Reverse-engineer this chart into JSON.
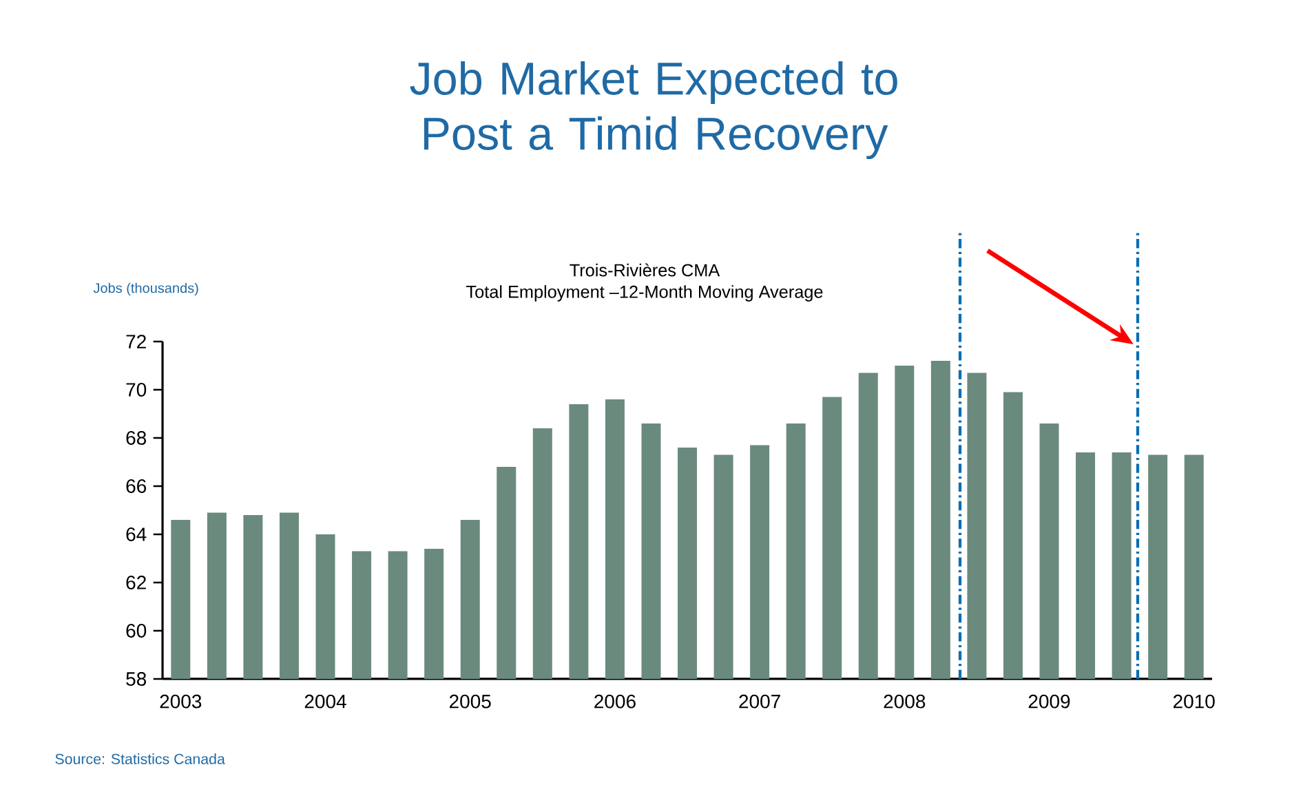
{
  "chart_data": {
    "type": "bar",
    "title": "Job Market Expected to Post a Timid Recovery",
    "subtitle": "Trois-Rivières CMA",
    "ylabel": "Jobs (thousands)",
    "annotations": [
      "Total Employment –12-Month Moving Average",
      "Source: Statistics Canada"
    ],
    "categories": [
      "2003",
      null,
      null,
      null,
      "2004",
      null,
      null,
      null,
      "2005",
      null,
      null,
      null,
      "2006",
      null,
      null,
      null,
      "2007",
      null,
      null,
      null,
      "2008",
      null,
      null,
      null,
      "2009",
      null,
      null,
      null,
      "2010"
    ],
    "values": [
      64.6,
      64.9,
      64.8,
      64.9,
      64.0,
      63.3,
      63.3,
      63.4,
      64.6,
      66.8,
      68.4,
      69.4,
      69.6,
      68.6,
      67.6,
      67.3,
      67.7,
      68.6,
      69.7,
      70.7,
      71.0,
      71.2,
      70.7,
      69.9,
      68.6,
      67.4,
      67.4,
      67.3,
      67.3
    ],
    "color": "#6b8a7e",
    "ylim": [
      58,
      72
    ],
    "yticks": [
      58,
      60,
      62,
      64,
      66,
      68,
      70,
      72
    ]
  }
}
